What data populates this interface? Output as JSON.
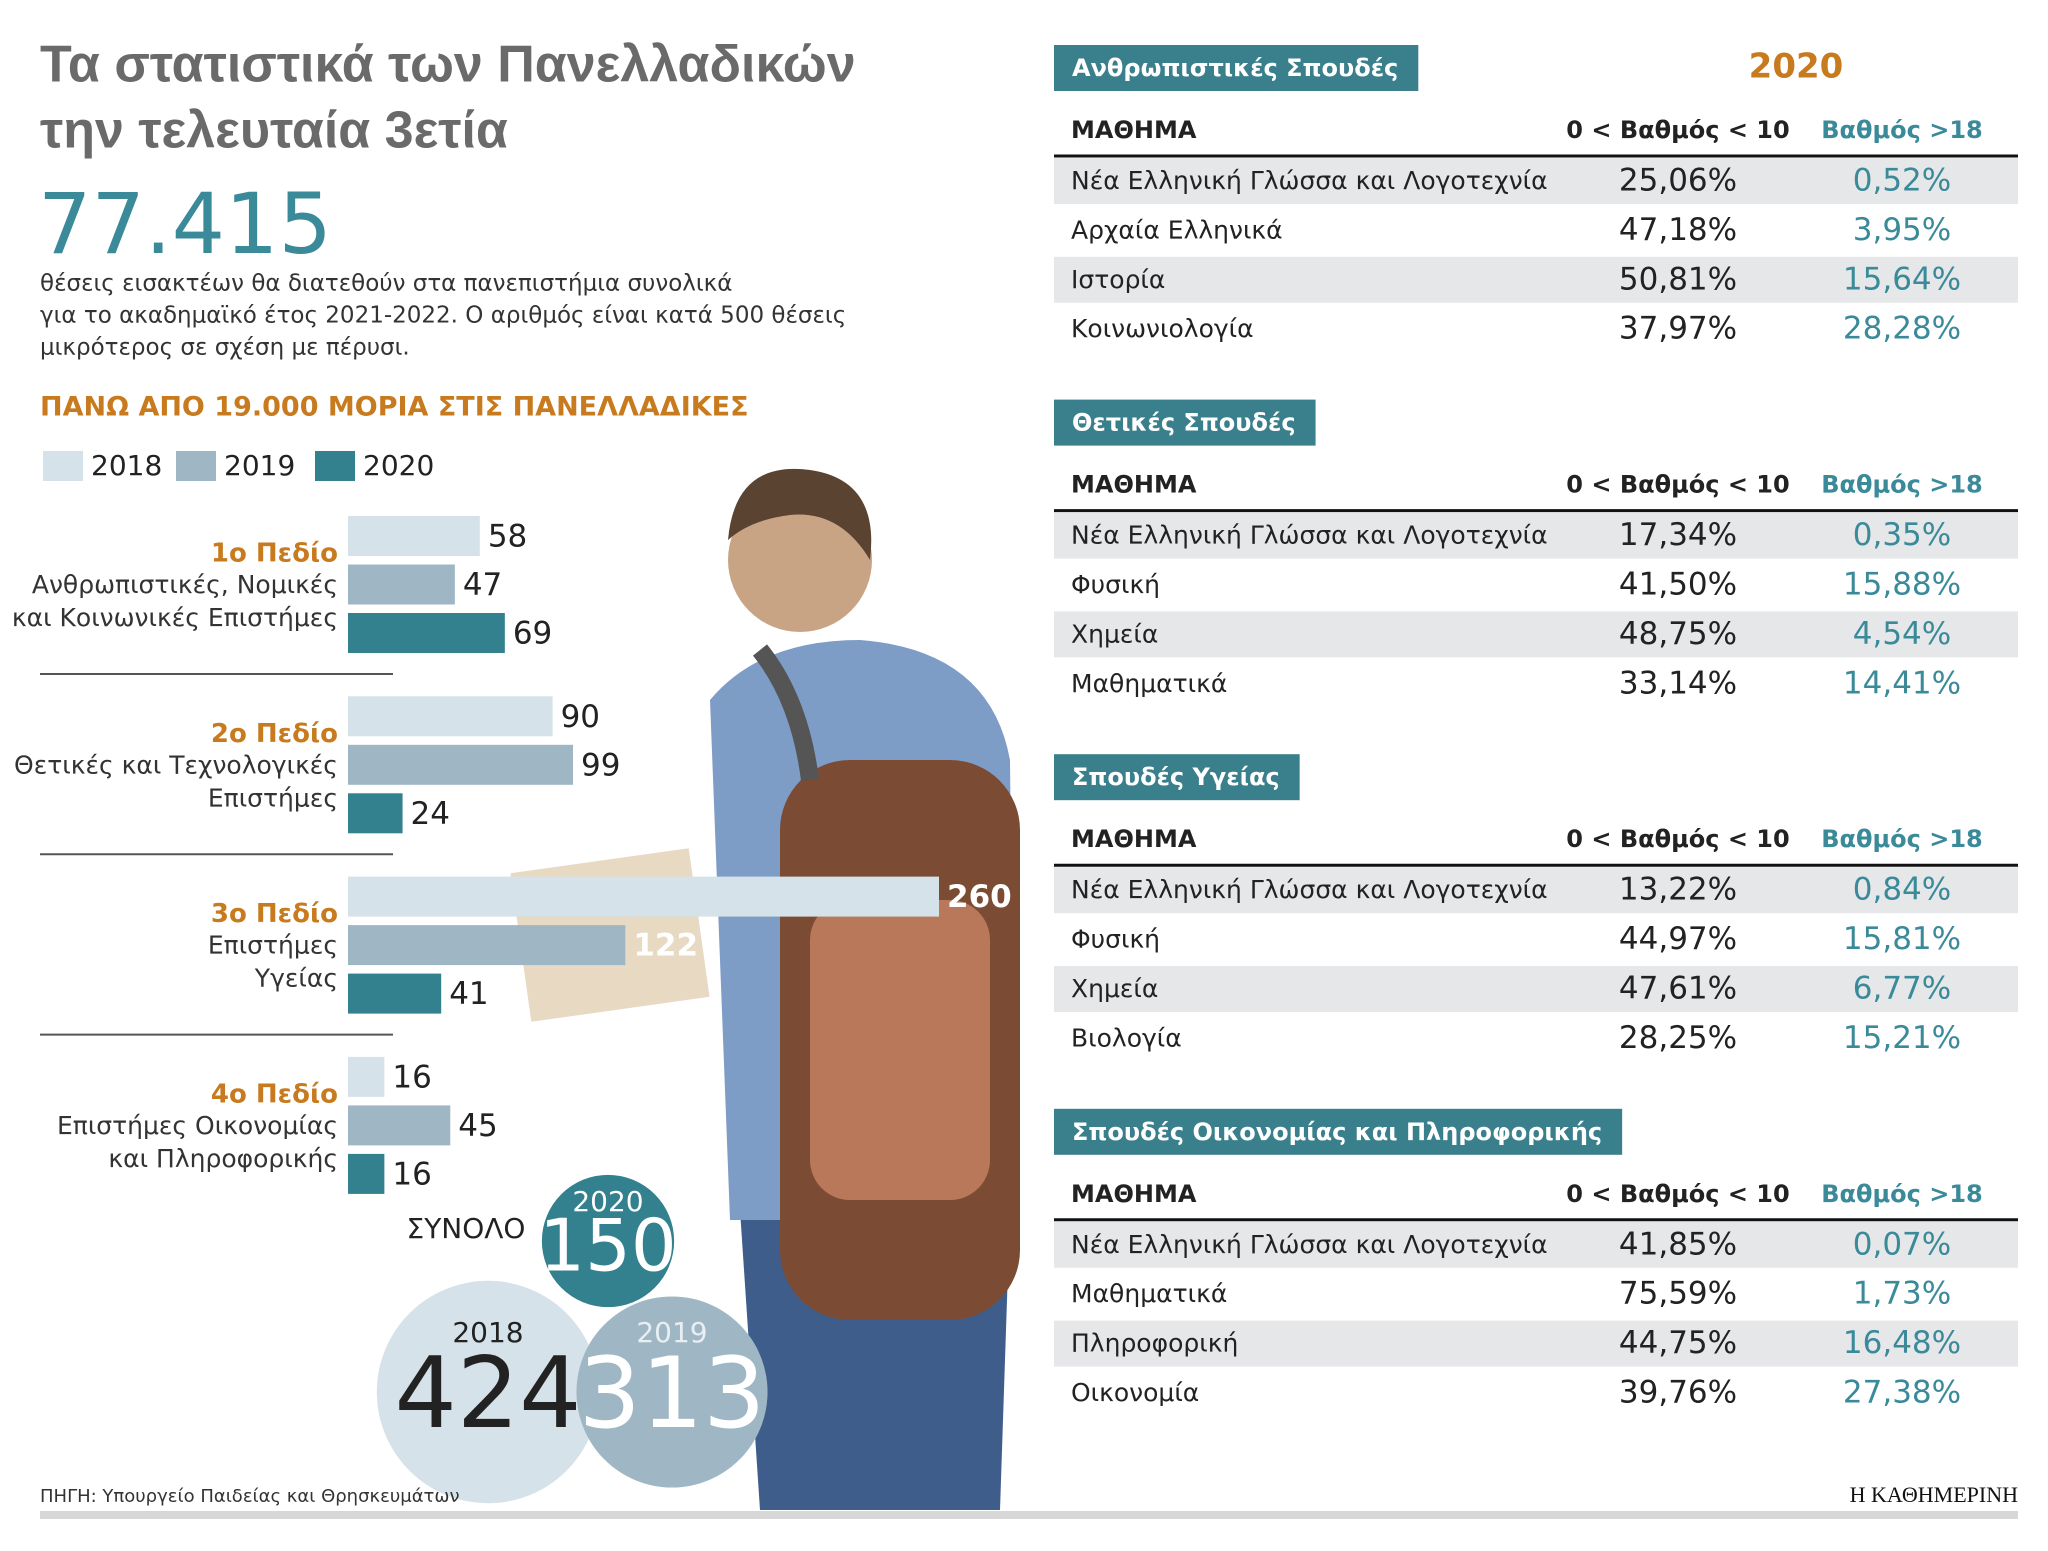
{
  "header": {
    "title": [
      "Τα στατιστικά των Πανελλαδικών",
      "την τελευταία 3ετία"
    ],
    "big_number": "77.415",
    "description": [
      "θέσεις εισακτέων θα διατεθούν στα πανεπιστήμια συνολικά",
      "για το ακαδημαϊκό έτος 2021-2022. Ο αριθμός είναι κατά 500 θέσεις",
      "μικρότερος σε σχέση με πέρυσι."
    ]
  },
  "chart_data": {
    "type": "bar",
    "orientation": "horizontal",
    "title": "ΠΑΝΩ ΑΠΟ 19.000 ΜΟΡΙΑ ΣΤΙΣ ΠΑΝΕΛΛΑΔΙΚΕΣ",
    "categories": [
      "1ο Πεδίο",
      "2ο Πεδίο",
      "3ο Πεδίο",
      "4ο Πεδίο"
    ],
    "category_descriptions": [
      [
        "Ανθρωπιστικές, Νομικές",
        "και Κοινωνικές Επιστήμες"
      ],
      [
        "Θετικές και Τεχνολογικές",
        "Επιστήμες"
      ],
      [
        "Επιστήμες",
        "Υγείας"
      ],
      [
        "Επιστήμες Οικονομίας",
        "και Πληροφορικής"
      ]
    ],
    "series": [
      {
        "name": "2018",
        "color": "#d5e2e9",
        "values": [
          58,
          90,
          260,
          16
        ]
      },
      {
        "name": "2019",
        "color": "#9fb7c4",
        "values": [
          47,
          99,
          122,
          45
        ]
      },
      {
        "name": "2020",
        "color": "#33808f",
        "values": [
          69,
          24,
          41,
          16
        ]
      }
    ],
    "xlim": [
      0,
      260
    ],
    "legend": "top-left"
  },
  "totals": {
    "label": "ΣΥΝΟΛΟ",
    "items": [
      {
        "year": "2020",
        "value": 150,
        "color": "#33808f"
      },
      {
        "year": "2018",
        "value": 424,
        "color": "#d5e2e9"
      },
      {
        "year": "2019",
        "value": 313,
        "color": "#9fb7c4"
      }
    ]
  },
  "tables_year": "2020",
  "tables": [
    {
      "title": "Ανθρωπιστικές Σπουδές",
      "columns": [
        "ΜΑΘΗΜΑ",
        "0 < Βαθμός < 10",
        "Βαθμός >18"
      ],
      "rows": [
        [
          "Νέα Ελληνική Γλώσσα και Λογοτεχνία",
          "25,06%",
          "0,52%"
        ],
        [
          "Αρχαία Ελληνικά",
          "47,18%",
          "3,95%"
        ],
        [
          "Ιστορία",
          "50,81%",
          "15,64%"
        ],
        [
          "Κοινωνιολογία",
          "37,97%",
          "28,28%"
        ]
      ]
    },
    {
      "title": "Θετικές Σπουδές",
      "columns": [
        "ΜΑΘΗΜΑ",
        "0 < Βαθμός < 10",
        "Βαθμός >18"
      ],
      "rows": [
        [
          "Νέα Ελληνική Γλώσσα και Λογοτεχνία",
          "17,34%",
          "0,35%"
        ],
        [
          "Φυσική",
          "41,50%",
          "15,88%"
        ],
        [
          "Χημεία",
          "48,75%",
          "4,54%"
        ],
        [
          "Μαθηματικά",
          "33,14%",
          "14,41%"
        ]
      ]
    },
    {
      "title": "Σπουδές Υγείας",
      "columns": [
        "ΜΑΘΗΜΑ",
        "0 < Βαθμός < 10",
        "Βαθμός >18"
      ],
      "rows": [
        [
          "Νέα Ελληνική Γλώσσα και Λογοτεχνία",
          "13,22%",
          "0,84%"
        ],
        [
          "Φυσική",
          "44,97%",
          "15,81%"
        ],
        [
          "Χημεία",
          "47,61%",
          "6,77%"
        ],
        [
          "Βιολογία",
          "28,25%",
          "15,21%"
        ]
      ]
    },
    {
      "title": "Σπουδές Οικονομίας και Πληροφορικής",
      "columns": [
        "ΜΑΘΗΜΑ",
        "0 < Βαθμός < 10",
        "Βαθμός >18"
      ],
      "rows": [
        [
          "Νέα Ελληνική Γλώσσα και Λογοτεχνία",
          "41,85%",
          "0,07%"
        ],
        [
          "Μαθηματικά",
          "75,59%",
          "1,73%"
        ],
        [
          "Πληροφορική",
          "44,75%",
          "16,48%"
        ],
        [
          "Οικονομία",
          "39,76%",
          "27,38%"
        ]
      ]
    }
  ],
  "footer": {
    "source": "ΠΗΓΗ: Υπουργείο Παιδείας και Θρησκευμάτων",
    "brand": "Η ΚΑΘΗΜΕΡΙΝΗ"
  }
}
